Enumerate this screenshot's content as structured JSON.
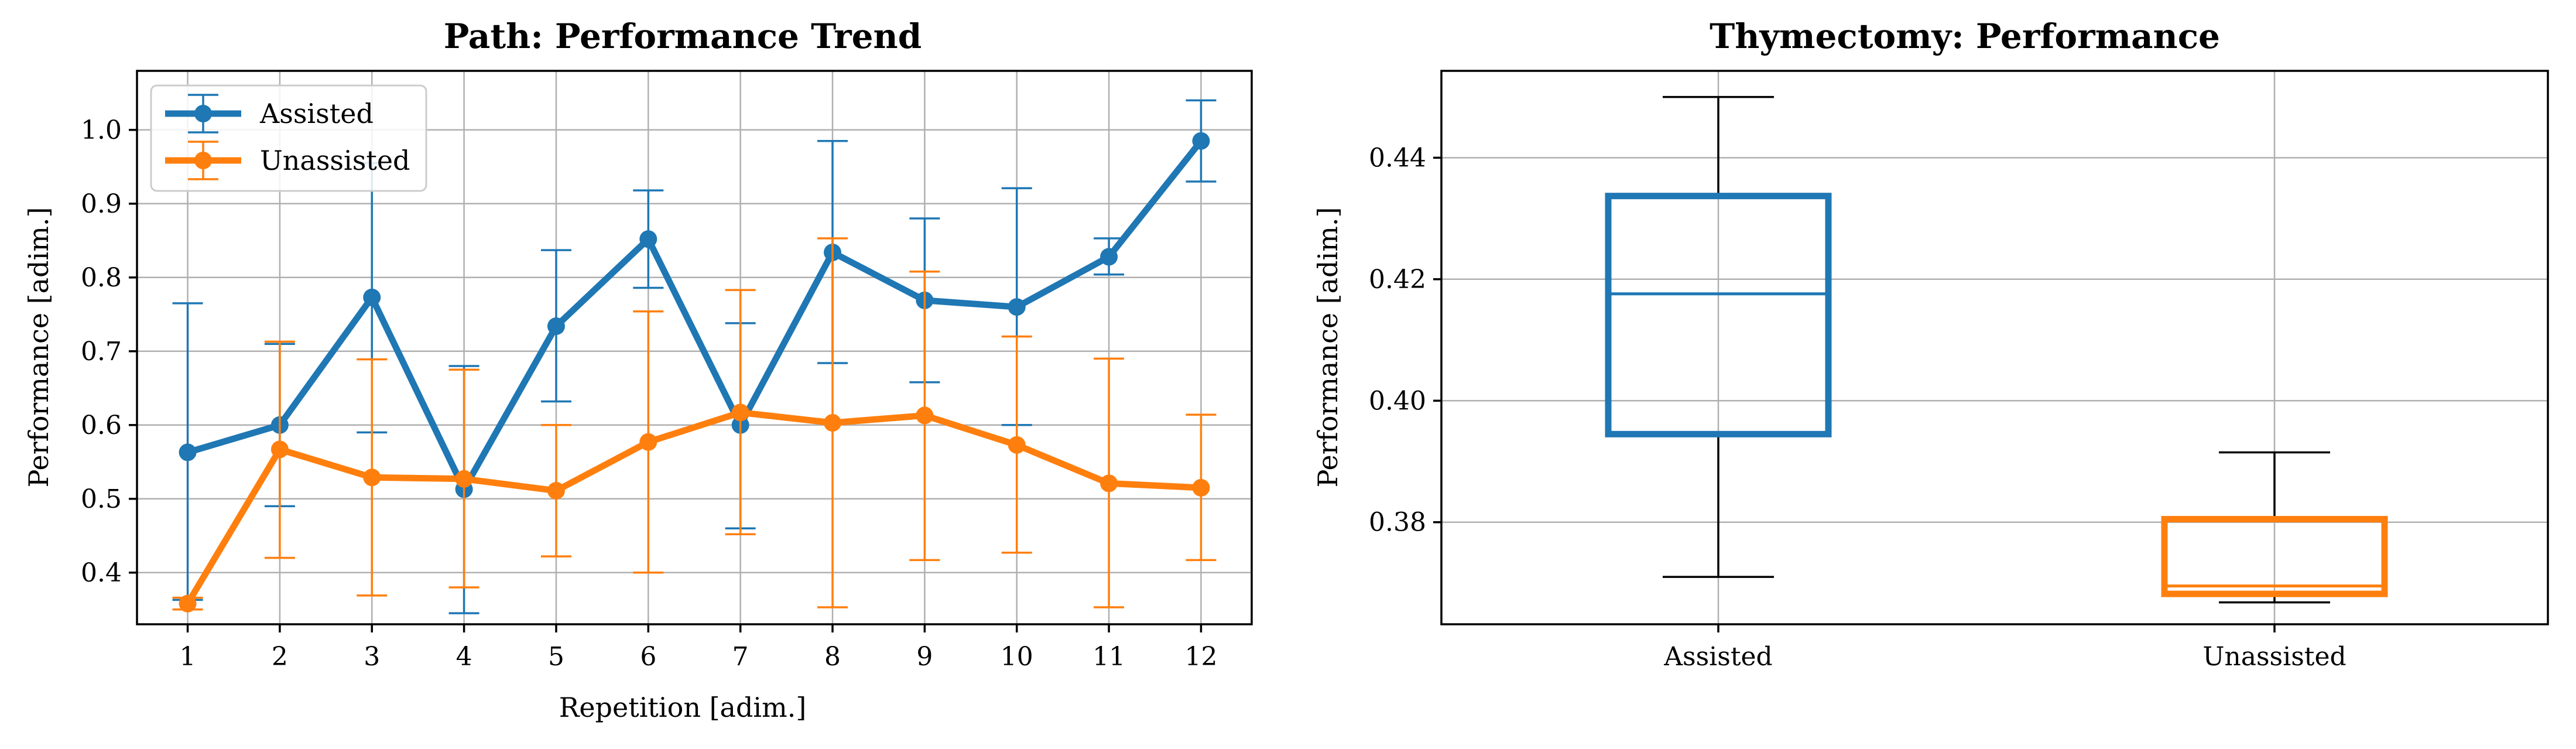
{
  "colors": {
    "assisted": "#1f77b4",
    "unassisted": "#ff7f0e"
  },
  "chart_data": [
    {
      "type": "line",
      "title": "Path: Performance Trend",
      "xlabel": "Repetition [adim.]",
      "ylabel": "Performance [adim.]",
      "x": [
        1,
        2,
        3,
        4,
        5,
        6,
        7,
        8,
        9,
        10,
        11,
        12
      ],
      "xlim": [
        0.45,
        12.55
      ],
      "ylim": [
        0.33,
        1.08
      ],
      "yticks": [
        0.4,
        0.5,
        0.6,
        0.7,
        0.8,
        0.9,
        1.0
      ],
      "grid": true,
      "legend_position": "upper-left",
      "error_bars": true,
      "series": [
        {
          "name": "Assisted",
          "values": [
            0.563,
            0.6,
            0.773,
            0.513,
            0.734,
            0.852,
            0.6,
            0.834,
            0.769,
            0.76,
            0.828,
            0.985
          ],
          "err_low": [
            0.363,
            0.49,
            0.59,
            0.345,
            0.632,
            0.786,
            0.46,
            0.684,
            0.658,
            0.6,
            0.804,
            0.93
          ],
          "err_high": [
            0.765,
            0.71,
            0.955,
            0.68,
            0.837,
            0.918,
            0.738,
            0.985,
            0.88,
            0.921,
            0.853,
            1.04
          ]
        },
        {
          "name": "Unassisted",
          "values": [
            0.358,
            0.567,
            0.529,
            0.527,
            0.511,
            0.577,
            0.617,
            0.603,
            0.613,
            0.573,
            0.521,
            0.515
          ],
          "err_low": [
            0.35,
            0.42,
            0.369,
            0.38,
            0.422,
            0.4,
            0.452,
            0.353,
            0.417,
            0.427,
            0.353,
            0.417
          ],
          "err_high": [
            0.366,
            0.713,
            0.689,
            0.675,
            0.6,
            0.754,
            0.783,
            0.853,
            0.808,
            0.72,
            0.69,
            0.614
          ]
        }
      ]
    },
    {
      "type": "box",
      "title": "Thymectomy: Performance",
      "xlabel": "",
      "ylabel": "Performance [adim.]",
      "categories": [
        "Assisted",
        "Unassisted"
      ],
      "ylim": [
        0.3632,
        0.4543
      ],
      "yticks": [
        0.38,
        0.4,
        0.42,
        0.44
      ],
      "grid": true,
      "boxes": [
        {
          "name": "Assisted",
          "whisker_low": 0.371,
          "q1": 0.3945,
          "median": 0.4176,
          "q3": 0.4337,
          "whisker_high": 0.45
        },
        {
          "name": "Unassisted",
          "whisker_low": 0.3668,
          "q1": 0.3682,
          "median": 0.3695,
          "q3": 0.3805,
          "whisker_high": 0.3915
        }
      ]
    }
  ]
}
